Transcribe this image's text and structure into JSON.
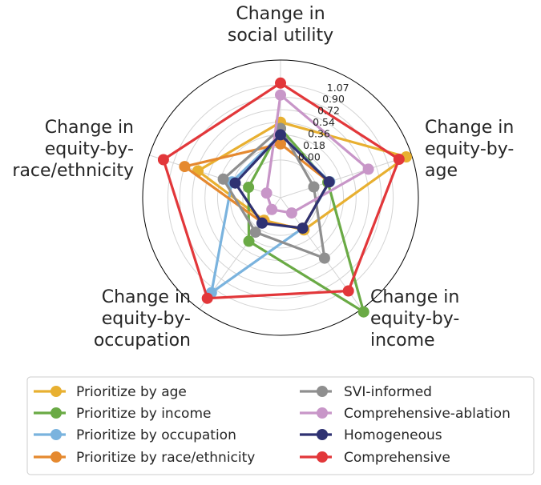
{
  "chart_data": {
    "type": "radar",
    "axes": [
      {
        "title_lines": [
          "Change in",
          "social utility"
        ]
      },
      {
        "title_lines": [
          "Change in",
          "equity-by-",
          "age"
        ]
      },
      {
        "title_lines": [
          "Change in",
          "equity-by-",
          "income"
        ]
      },
      {
        "title_lines": [
          "Change in",
          "equity-by-",
          "occupation"
        ]
      },
      {
        "title_lines": [
          "Change in",
          "equity-by-",
          "race/ethnicity"
        ]
      }
    ],
    "r_ticks": [
      "0.00",
      "0.18",
      "0.36",
      "0.54",
      "0.72",
      "0.90",
      "1.07"
    ],
    "r_tick_values": [
      0.0,
      0.18,
      0.36,
      0.54,
      0.72,
      0.9,
      1.07
    ],
    "r_range": [
      -0.54,
      1.43
    ],
    "grid": true,
    "legend_position": "bottom",
    "series": [
      {
        "name": "Prioritize by age",
        "color": "#E8B031",
        "values": [
          0.54,
          1.35,
          0.03,
          -0.14,
          0.7
        ]
      },
      {
        "name": "Prioritize by income",
        "color": "#6AAA45",
        "values": [
          0.45,
          0.17,
          1.48,
          0.23,
          -0.06
        ]
      },
      {
        "name": "Prioritize by occupation",
        "color": "#7AB3DE",
        "values": [
          0.36,
          0.2,
          0.0,
          1.14,
          0.19
        ]
      },
      {
        "name": "Prioritize by race/ethnicity",
        "color": "#E5892F",
        "values": [
          0.23,
          0.19,
          0.0,
          -0.1,
          0.9
        ]
      },
      {
        "name": "SVI-informed",
        "color": "#8F8F8F",
        "values": [
          0.45,
          -0.04,
          0.53,
          0.07,
          0.32
        ]
      },
      {
        "name": "Comprehensive-ablation",
        "color": "#C896C8",
        "values": [
          0.93,
          0.78,
          -0.27,
          -0.33,
          -0.33
        ]
      },
      {
        "name": "Homogeneous",
        "color": "#2F3272",
        "values": [
          0.36,
          0.19,
          0.0,
          -0.09,
          0.14
        ]
      },
      {
        "name": "Comprehensive",
        "color": "#E2373A",
        "values": [
          1.1,
          1.24,
          1.11,
          1.24,
          1.22
        ]
      }
    ]
  }
}
